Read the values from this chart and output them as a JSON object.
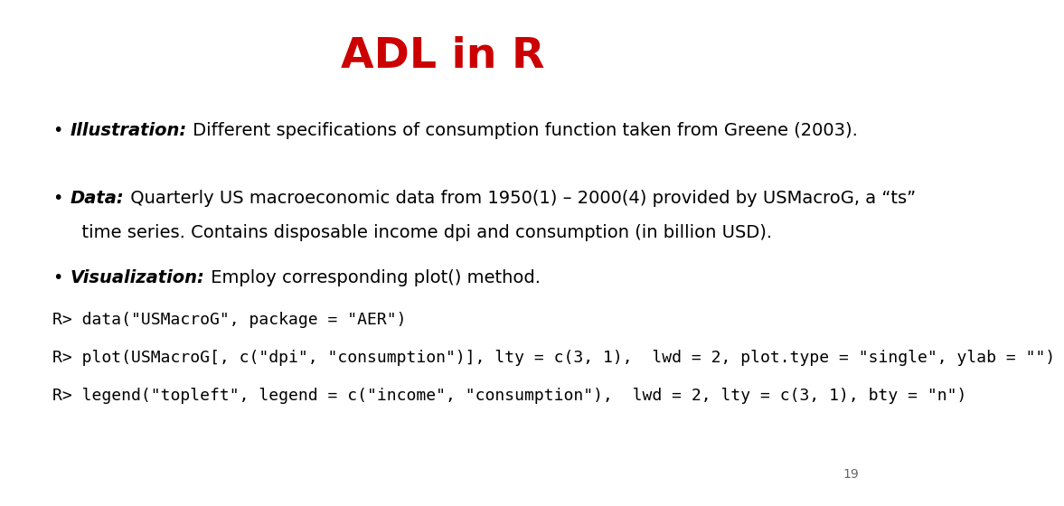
{
  "title": "ADL in R",
  "title_color": "#CC0000",
  "title_fontsize": 34,
  "background_color": "#ffffff",
  "page_number": "19",
  "bullet1_bold": "Illustration:",
  "bullet1_rest": " Different specifications of consumption function taken from Greene (2003).",
  "bullet2_bold": "Data:",
  "bullet2_rest": " Quarterly US macroeconomic data from 1950(1) – 2000(4) provided by USMacroG, a “ts”",
  "bullet2_cont": "  time series. Contains disposable income dpi and consumption (in billion USD).",
  "bullet3_bold": "Visualization:",
  "bullet3_rest": " Employ corresponding plot() method.",
  "code1": "R> data(\"USMacroG\", package = \"AER\")",
  "code2": "R> plot(USMacroG[, c(\"dpi\", \"consumption\")], lty = c(3, 1),  lwd = 2, plot.type = \"single\", ylab = \"\")",
  "code3": "R> legend(\"topleft\", legend = c(\"income\", \"consumption\"),  lwd = 2, lty = c(3, 1), bty = \"n\")",
  "text_fontsize": 14,
  "code_fontsize": 13,
  "text_color": "#000000"
}
